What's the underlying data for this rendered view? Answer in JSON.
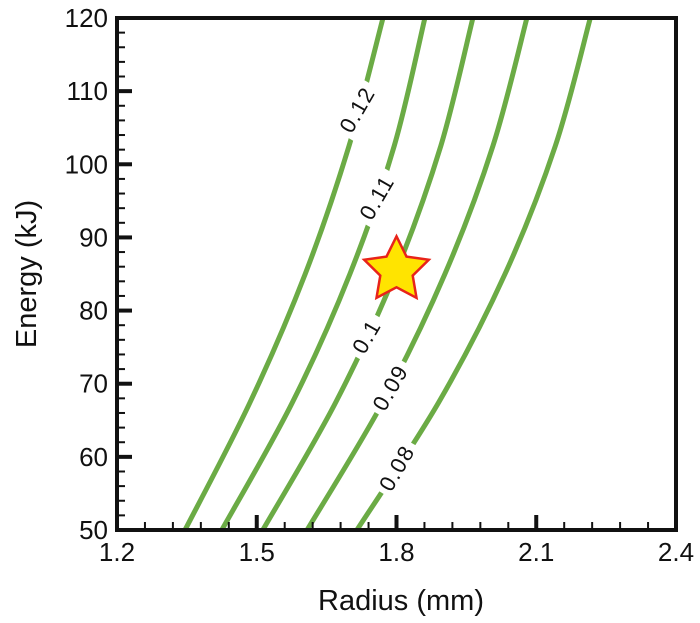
{
  "chart_data": {
    "type": "contour",
    "title": "",
    "xlabel": "Radius (mm)",
    "ylabel": "Energy (kJ)",
    "xlim": [
      1.2,
      2.4
    ],
    "ylim": [
      50,
      120
    ],
    "x_major_ticks": [
      1.2,
      1.5,
      1.8,
      2.1,
      2.4
    ],
    "x_tick_labels": [
      "1.2",
      "1.5",
      "1.8",
      "2.1",
      "2.4"
    ],
    "x_minor_step": 0.06,
    "y_major_ticks": [
      50,
      60,
      70,
      80,
      90,
      100,
      110,
      120
    ],
    "y_tick_labels": [
      "50",
      "60",
      "70",
      "80",
      "90",
      "100",
      "110",
      "120"
    ],
    "y_minor_step": 2,
    "grid": false,
    "legend": "none",
    "energy_kj_samples": [
      50,
      67.5,
      85,
      102.5,
      120
    ],
    "contours": [
      {
        "label": "0.12",
        "radius_mm": [
          1.346,
          1.486,
          1.604,
          1.698,
          1.771
        ],
        "label_pos": {
          "r": 1.715,
          "E": 107.5
        },
        "label_rotation": -60
      },
      {
        "label": "0.11",
        "radius_mm": [
          1.425,
          1.577,
          1.7,
          1.795,
          1.861
        ],
        "label_pos": {
          "r": 1.757,
          "E": 95.5
        },
        "label_rotation": -60
      },
      {
        "label": "0.1",
        "radius_mm": [
          1.513,
          1.67,
          1.797,
          1.895,
          1.964
        ],
        "label_pos": {
          "r": 1.735,
          "E": 76.5
        },
        "label_rotation": -60
      },
      {
        "label": "0.09",
        "radius_mm": [
          1.608,
          1.771,
          1.904,
          2.007,
          2.08
        ],
        "label_pos": {
          "r": 1.786,
          "E": 69.5
        },
        "label_rotation": -60
      },
      {
        "label": "0.08",
        "radius_mm": [
          1.715,
          1.891,
          2.033,
          2.141,
          2.216
        ],
        "label_pos": {
          "r": 1.8,
          "E": 58.5
        },
        "label_rotation": -60
      }
    ],
    "marker": {
      "shape": "star",
      "r": 1.8,
      "E": 85.5,
      "fill": "#ffe400",
      "stroke": "#e8231a"
    },
    "colors": {
      "contour_line": "#6bab45",
      "axis": "#111111",
      "text": "#111111",
      "background": "#ffffff"
    }
  }
}
